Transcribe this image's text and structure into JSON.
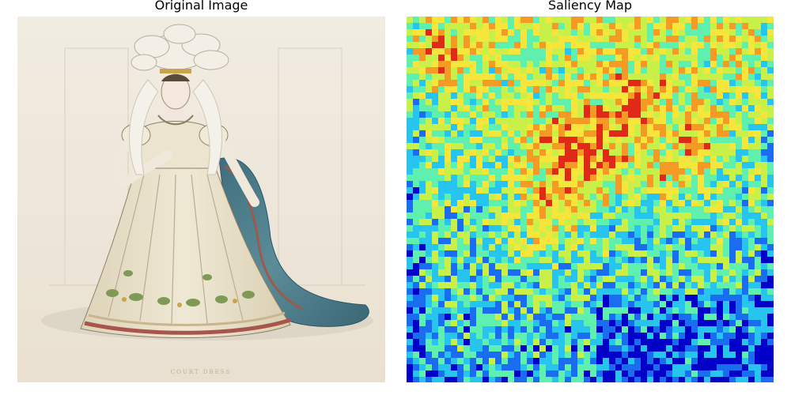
{
  "titles": {
    "left": "Original Image",
    "right": "Saliency Map"
  },
  "original_image": {
    "caption": "COURT DRESS",
    "colors": {
      "paper": "#efe9dd",
      "ink": "#6b5f52",
      "dress": "#e8e0c8",
      "mantle": "#4f7f8c",
      "lining": "#9b5a4c",
      "hem_red": "#a8564c",
      "leaf_green": "#7f9a54",
      "feather": "#f3efe6"
    }
  },
  "saliency_map": {
    "colormap": "jet",
    "colors": [
      "#0000c8",
      "#1a6cf0",
      "#27c4f0",
      "#5ff0b0",
      "#c8f048",
      "#f6e53b",
      "#f59a24",
      "#e02a18"
    ]
  }
}
